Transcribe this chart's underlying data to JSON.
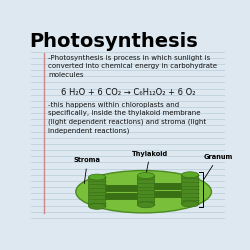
{
  "title": "Photosynthesis",
  "title_fontsize": 14,
  "title_color": "#000000",
  "title_bold": true,
  "background_color": "#dde8f0",
  "line_color": "#b8ccd8",
  "text_block1": "-Photosynthesis is process in which sunlight is\nconverted into chemical energy in carbohydrate\nmolecules",
  "equation": "6 H₂O + 6 CO₂ → C₆H₁₂O₂ + 6 O₂",
  "text_block2": "-this happens within chloroplasts and\nspecifically, inside the thylakoid membrane\n(light dependent reactions) and stroma (light\nindependent reactions)",
  "text_fontsize": 5.0,
  "eq_fontsize": 6.0,
  "stroma_label": "Stroma",
  "thylakoid_label": "Thylakoid",
  "granum_label": "Granum",
  "label_fontsize": 4.8,
  "chloroplast_fill": "#7abf3a",
  "chloroplast_edge": "#4a8a20",
  "cylinder_fill": "#4a8a20",
  "cylinder_stripe": "#3a6e15",
  "cylinder_top": "#5aaa28",
  "tube_color": "#3a7015",
  "left_bar_color": "#8899aa"
}
